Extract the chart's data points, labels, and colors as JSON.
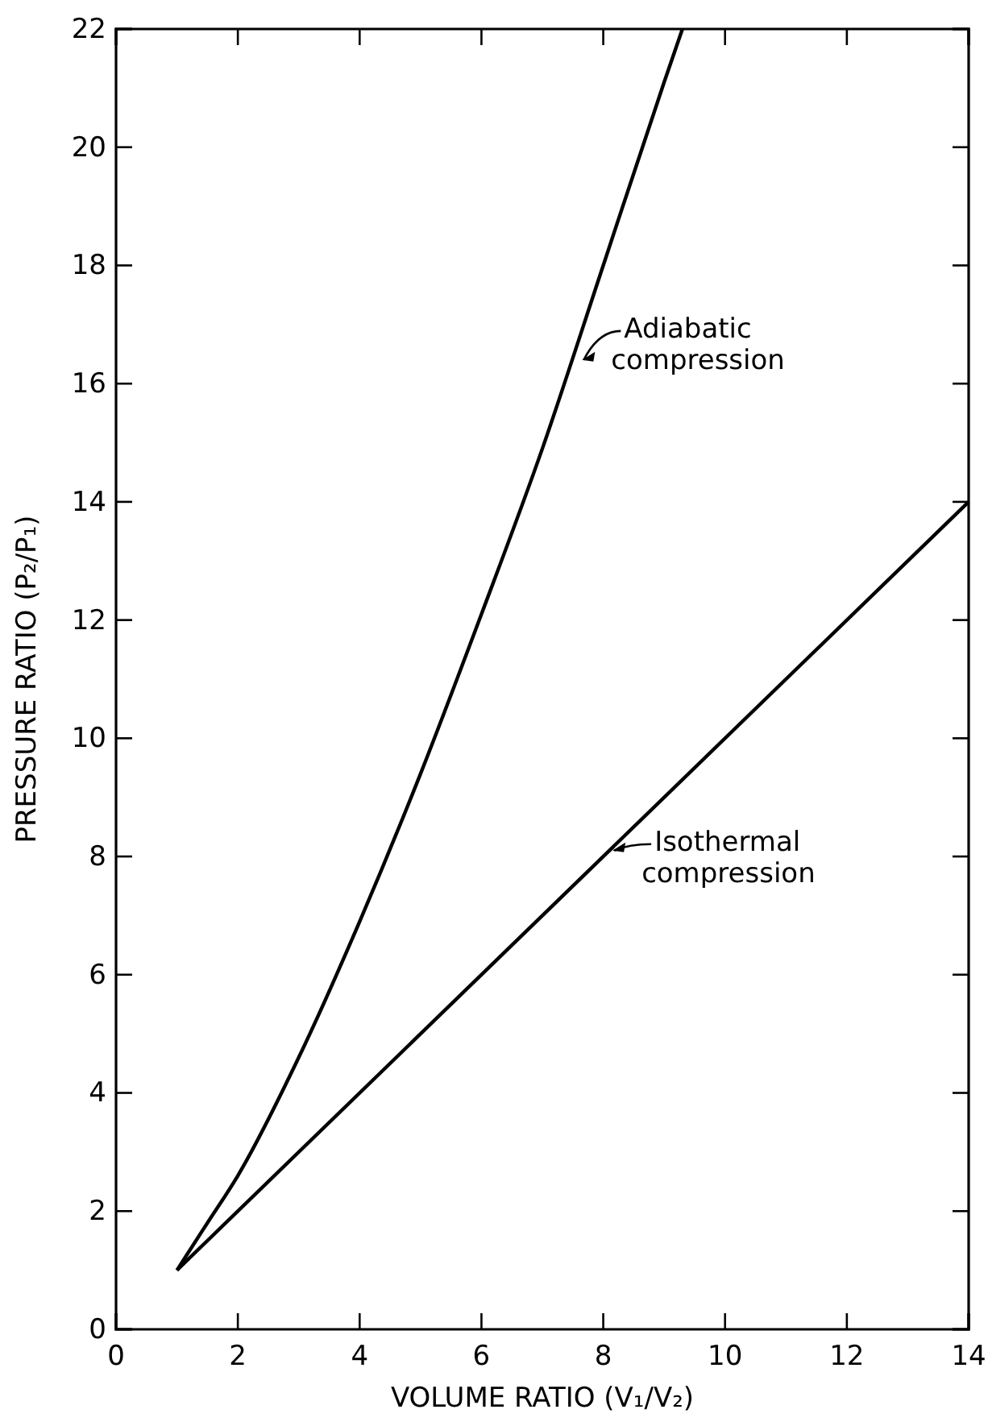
{
  "chart_data": {
    "type": "line",
    "xlabel": "VOLUME RATIO (V₁/V₂)",
    "ylabel": "PRESSURE RATIO (P₂/P₁)",
    "xlim": [
      0,
      14
    ],
    "ylim": [
      0,
      22
    ],
    "xticks": [
      0,
      2,
      4,
      6,
      8,
      10,
      12,
      14
    ],
    "yticks": [
      0,
      2,
      4,
      6,
      8,
      10,
      12,
      14,
      16,
      18,
      20,
      22
    ],
    "grid": false,
    "marker": "none",
    "line_style": "solid",
    "series": [
      {
        "color": "#000000",
        "x": [
          1,
          1.5,
          2,
          3,
          4,
          5,
          6,
          7,
          8,
          9,
          9.3
        ],
        "values": [
          1,
          1.8,
          2.6,
          4.6,
          6.9,
          9.4,
          12.1,
          14.9,
          18.0,
          21.1,
          22
        ]
      },
      {
        "color": "#000000",
        "x": [
          1,
          14
        ],
        "values": [
          1,
          14
        ]
      }
    ],
    "annotations": [
      {
        "text": "Adiabatic compression",
        "x": 7.6,
        "y": 16.4
      },
      {
        "text": "Isothermal compression",
        "x": 8.1,
        "y": 8.1
      }
    ]
  }
}
